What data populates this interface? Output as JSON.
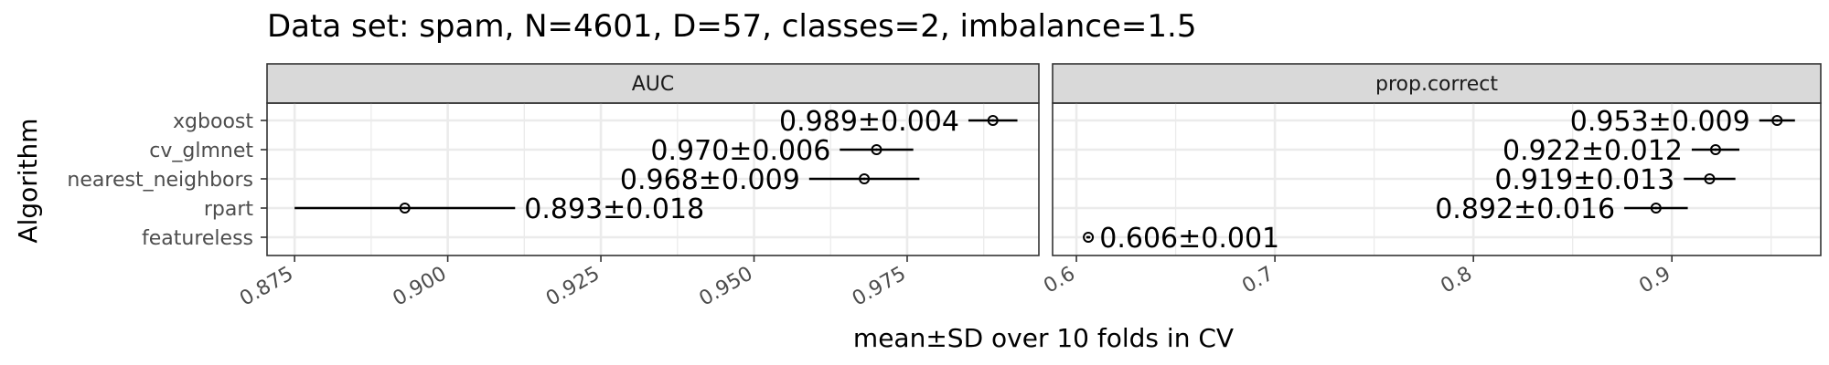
{
  "chart_data": {
    "type": "scatter",
    "title": "Data set: spam, N=4601, D=57, classes=2, imbalance=1.5",
    "ylabel": "Algorithm",
    "xlabel": "mean±SD over 10 folds in CV",
    "algorithms": [
      "xgboost",
      "cv_glmnet",
      "nearest_neighbors",
      "rpart",
      "featureless"
    ],
    "panels": [
      {
        "name": "AUC",
        "xlim": [
          0.8705,
          0.9965
        ],
        "ticks": [
          0.875,
          0.9,
          0.925,
          0.95,
          0.975
        ],
        "tick_labels": [
          "0.875",
          "0.900",
          "0.925",
          "0.950",
          "0.975"
        ],
        "points": [
          {
            "algorithm": "xgboost",
            "mean": 0.989,
            "sd": 0.004,
            "label": "0.989±0.004",
            "label_side": "left"
          },
          {
            "algorithm": "cv_glmnet",
            "mean": 0.97,
            "sd": 0.006,
            "label": "0.970±0.006",
            "label_side": "left"
          },
          {
            "algorithm": "nearest_neighbors",
            "mean": 0.968,
            "sd": 0.009,
            "label": "0.968±0.009",
            "label_side": "left"
          },
          {
            "algorithm": "rpart",
            "mean": 0.893,
            "sd": 0.018,
            "label": "0.893±0.018",
            "label_side": "right"
          }
        ]
      },
      {
        "name": "prop.correct",
        "xlim": [
          0.588,
          0.975
        ],
        "ticks": [
          0.6,
          0.7,
          0.8,
          0.9
        ],
        "tick_labels": [
          "0.6",
          "0.7",
          "0.8",
          "0.9"
        ],
        "points": [
          {
            "algorithm": "xgboost",
            "mean": 0.953,
            "sd": 0.009,
            "label": "0.953±0.009",
            "label_side": "left"
          },
          {
            "algorithm": "cv_glmnet",
            "mean": 0.922,
            "sd": 0.012,
            "label": "0.922±0.012",
            "label_side": "left"
          },
          {
            "algorithm": "nearest_neighbors",
            "mean": 0.919,
            "sd": 0.013,
            "label": "0.919±0.013",
            "label_side": "left"
          },
          {
            "algorithm": "rpart",
            "mean": 0.892,
            "sd": 0.016,
            "label": "0.892±0.016",
            "label_side": "left"
          },
          {
            "algorithm": "featureless",
            "mean": 0.606,
            "sd": 0.001,
            "label": "0.606±0.001",
            "label_side": "right"
          }
        ]
      }
    ]
  }
}
